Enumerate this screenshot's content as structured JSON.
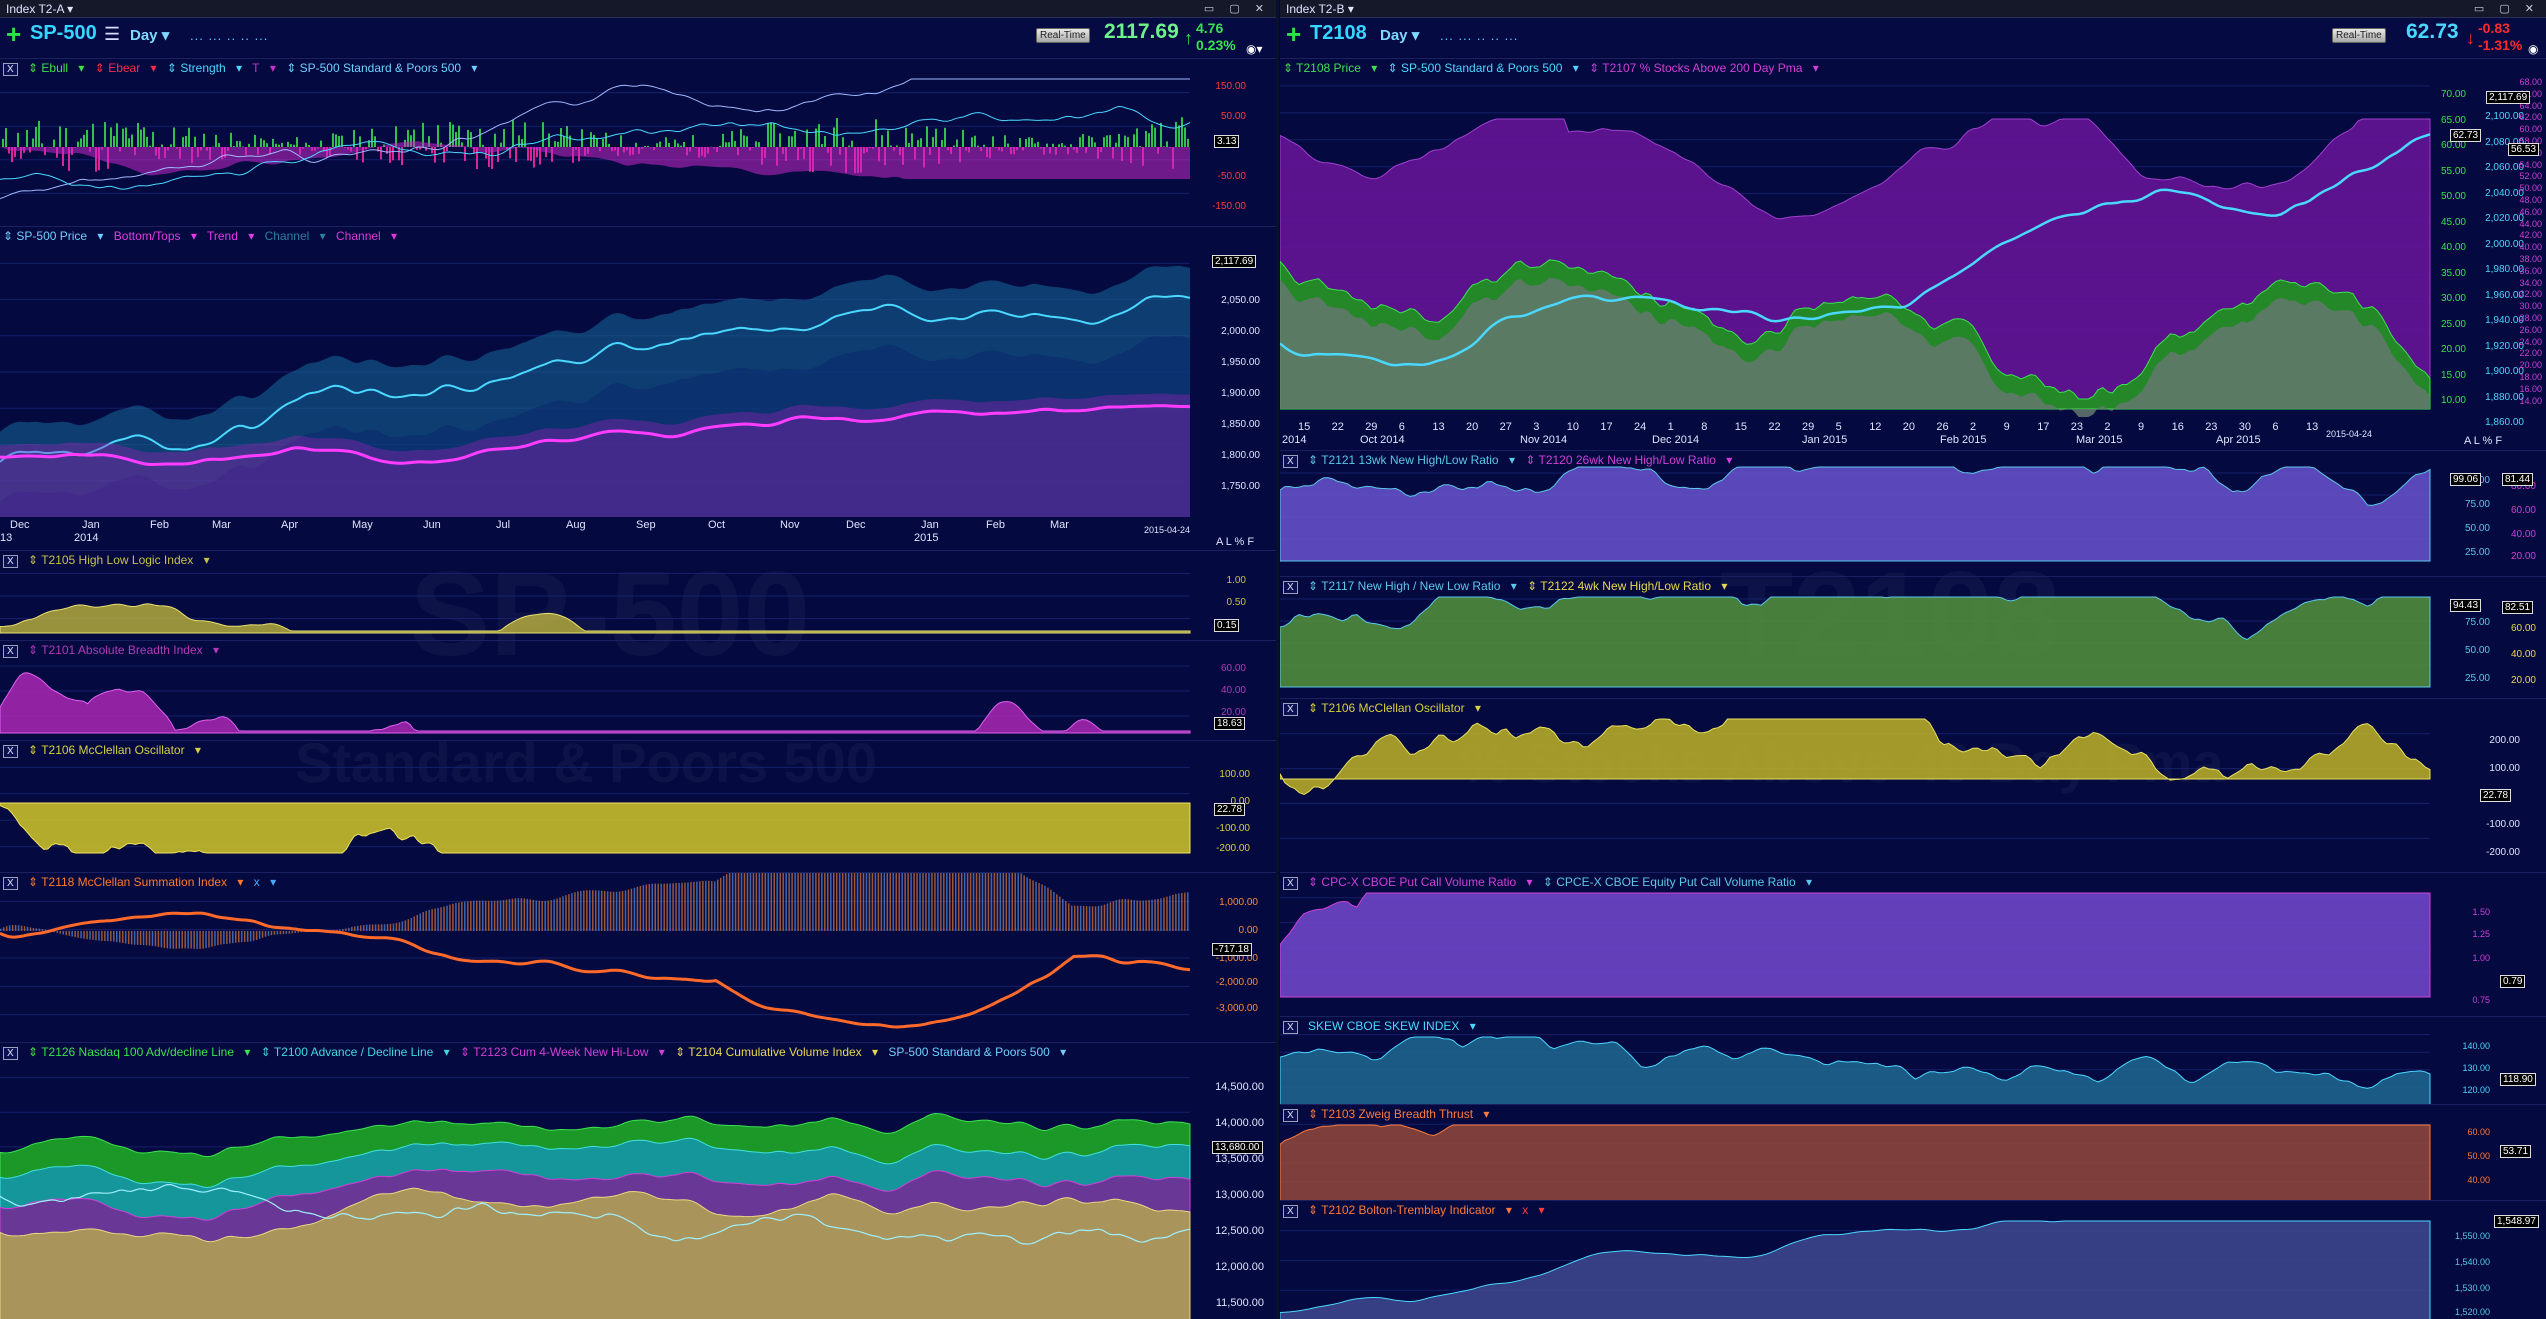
{
  "left": {
    "window_title": "Index T2-A",
    "symbol": "SP-500",
    "period": "Day",
    "realtime_label": "Real-Time",
    "last_price": "2117.69",
    "change": "4.76",
    "change_pct": "0.23%",
    "watermark_title": "SP-500",
    "watermark_subtitle": "Standard & Poors 500",
    "panels": {
      "p1": {
        "legend": [
          "Ebull",
          "Ebear",
          "Strength",
          "T",
          "SP-500 Standard & Poors 500"
        ],
        "axis": [
          "150.00",
          "50.00",
          "-50.00",
          "-150.00"
        ],
        "badge": "3.13"
      },
      "p2": {
        "legend": [
          "SP-500 Price",
          "Bottom/Tops",
          "Trend",
          "Channel",
          "Channel"
        ],
        "axis": [
          "2,050.00",
          "2,000.00",
          "1,950.00",
          "1,900.00",
          "1,850.00",
          "1,800.00",
          "1,750.00"
        ],
        "badge": "2,117.69",
        "months": [
          "Dec",
          "Jan",
          "Feb",
          "Mar",
          "Apr",
          "May",
          "Jun",
          "Jul",
          "Aug",
          "Sep",
          "Oct",
          "Nov",
          "Dec",
          "Jan",
          "Feb",
          "Mar"
        ],
        "years": [
          "13",
          "2014",
          "2015"
        ],
        "end_date": "2015-04-24",
        "ctrl": "A L % F"
      },
      "p3": {
        "legend": [
          "T2105 High Low Logic Index"
        ],
        "axis": [
          "1.00",
          "0.50"
        ],
        "badge": "0.15"
      },
      "p4": {
        "legend": [
          "T2101 Absolute Breadth Index"
        ],
        "axis": [
          "60.00",
          "40.00",
          "20.00"
        ],
        "badge": "18.63"
      },
      "p5": {
        "legend": [
          "T2106 McClellan Oscillator"
        ],
        "axis": [
          "100.00",
          "0.00",
          "-100.00",
          "-200.00"
        ],
        "badge": "22.78"
      },
      "p6": {
        "legend": [
          "T2118 McClellan Summation Index",
          "x"
        ],
        "axis": [
          "1,000.00",
          "0.00",
          "-1,000.00",
          "-2,000.00",
          "-3,000.00"
        ],
        "badge": "-717.18"
      },
      "p7": {
        "legend": [
          "T2126 Nasdaq 100 Adv/decline Line",
          "T2100 Advance / Decline Line",
          "T2123 Cum 4-Week New Hi-Low",
          "T2104 Cumulative Volume Index",
          "SP-500 Standard & Poors 500"
        ],
        "axis": [
          "14,500.00",
          "14,000.00",
          "13,500.00",
          "13,000.00",
          "12,500.00",
          "12,000.00",
          "11,500.00"
        ],
        "badge": "13,680.00"
      }
    }
  },
  "right": {
    "window_title": "Index T2-B",
    "symbol": "T2108",
    "period": "Day",
    "realtime_label": "Real-Time",
    "last_price": "62.73",
    "change": "-0.83",
    "change_pct": "-1.31%",
    "watermark_title": "T2108",
    "watermark_subtitle": "% Stocks Above 40 Day Pma",
    "panels": {
      "p1": {
        "legend": [
          "T2108 Price",
          "SP-500 Standard & Poors 500",
          "T2107 % Stocks Above 200 Day Pma"
        ],
        "axis1": [
          "70.00",
          "65.00",
          "60.00",
          "55.00",
          "50.00",
          "45.00",
          "40.00",
          "35.00",
          "30.00",
          "25.00",
          "20.00",
          "15.00",
          "10.00"
        ],
        "axis2": [
          "2,100.00",
          "2,080.00",
          "2,060.00",
          "2,040.00",
          "2,020.00",
          "2,000.00",
          "1,980.00",
          "1,960.00",
          "1,940.00",
          "1,920.00",
          "1,900.00",
          "1,880.00",
          "1,860.00"
        ],
        "axis3": [
          "68.00",
          "66.00",
          "64.00",
          "62.00",
          "60.00",
          "58.00",
          "56.00",
          "54.00",
          "52.00",
          "50.00",
          "48.00",
          "46.00",
          "44.00",
          "42.00",
          "40.00",
          "38.00",
          "36.00",
          "34.00",
          "32.00",
          "30.00",
          "28.00",
          "26.00",
          "24.00",
          "22.00",
          "20.00",
          "18.00",
          "16.00",
          "14.00"
        ],
        "badges": [
          "2,117.69",
          "62.73",
          "56.53"
        ],
        "days": [
          "15",
          "22",
          "29",
          "6",
          "13",
          "20",
          "27",
          "3",
          "10",
          "17",
          "24",
          "1",
          "8",
          "15",
          "22",
          "29",
          "5",
          "12",
          "20",
          "26",
          "2",
          "9",
          "17",
          "23",
          "2",
          "9",
          "16",
          "23",
          "30",
          "6",
          "13"
        ],
        "months": [
          "2014",
          "Oct 2014",
          "Nov 2014",
          "Dec 2014",
          "Jan 2015",
          "Feb 2015",
          "Mar 2015",
          "Apr 2015"
        ],
        "end_date": "2015-04-24",
        "ctrl": "A L % F"
      },
      "p2": {
        "legend": [
          "T2121 13wk New High/Low Ratio",
          "T2120 26wk New High/Low Ratio"
        ],
        "axis": [
          "100.00",
          "75.00",
          "50.00",
          "25.00"
        ],
        "axis2": [
          "80.00",
          "60.00",
          "40.00",
          "20.00"
        ],
        "badges": [
          "99.06",
          "81.44"
        ]
      },
      "p3": {
        "legend": [
          "T2117 New High / New Low Ratio",
          "T2122 4wk New High/Low Ratio"
        ],
        "axis": [
          "75.00",
          "50.00",
          "25.00"
        ],
        "axis2": [
          "60.00",
          "40.00",
          "20.00"
        ],
        "badges": [
          "94.43",
          "82.51"
        ]
      },
      "p4": {
        "legend": [
          "T2106 McClellan Oscillator"
        ],
        "axis": [
          "200.00",
          "100.00",
          "-100.00",
          "-200.00"
        ],
        "badge": "22.78"
      },
      "p5": {
        "legend": [
          "CPC-X CBOE Put Call Volume Ratio",
          "CPCE-X CBOE Equity Put Call Volume Ratio"
        ],
        "axis": [
          "1.50",
          "1.25",
          "1.00",
          "0.75"
        ],
        "badge": "0.79"
      },
      "p6": {
        "legend": [
          "SKEW CBOE SKEW INDEX"
        ],
        "axis": [
          "140.00",
          "130.00",
          "120.00"
        ],
        "badge": "118.90"
      },
      "p7": {
        "legend": [
          "T2103 Zweig Breadth Thrust"
        ],
        "axis": [
          "60.00",
          "50.00",
          "40.00"
        ],
        "badge": "53.71"
      },
      "p8": {
        "legend": [
          "T2102 Bolton-Tremblay Indicator",
          "x"
        ],
        "axis": [
          "1,550.00",
          "1,540.00",
          "1,530.00",
          "1,520.00"
        ],
        "badge": "1,548.97"
      }
    }
  },
  "colors": {
    "up": "#37e34f",
    "down": "#ff2a2a",
    "bg": "#04093f"
  }
}
